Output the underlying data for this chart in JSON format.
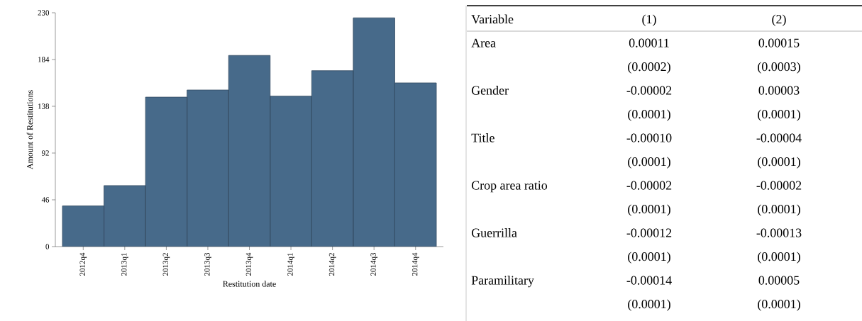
{
  "chart_data": [
    {
      "type": "bar",
      "xlabel": "Restitution date",
      "ylabel": "Amount of Restitutions",
      "categories": [
        "2012q4",
        "2013q1",
        "2013q2",
        "2013q3",
        "2013q4",
        "2014q1",
        "2014q2",
        "2014q3",
        "2014q4"
      ],
      "values": [
        40,
        60,
        147,
        154,
        188,
        148,
        173,
        225,
        161
      ],
      "color": "#476a8a",
      "ylim": [
        0,
        230
      ],
      "yticks": [
        0,
        46,
        92,
        138,
        184,
        230
      ]
    },
    {
      "type": "other",
      "ylabel": "Variable",
      "categories": [
        "(1)",
        "(2)"
      ],
      "y_categories": [
        "Area",
        null,
        "Gender",
        null,
        "Title",
        null,
        "Crop area ratio",
        null,
        "Guerrilla",
        null,
        "Paramilitary",
        null
      ],
      "cell_labels": [
        [
          "0.00011",
          "0.00015"
        ],
        [
          "(0.0002)",
          "(0.0003)"
        ],
        [
          "-0.00002",
          "0.00003"
        ],
        [
          "(0.0001)",
          "(0.0001)"
        ],
        [
          "-0.00010",
          "-0.00004"
        ],
        [
          "(0.0001)",
          "(0.0001)"
        ],
        [
          "-0.00002",
          "-0.00002"
        ],
        [
          "(0.0001)",
          "(0.0001)"
        ],
        [
          "-0.00012",
          "-0.00013"
        ],
        [
          "(0.0001)",
          "(0.0001)"
        ],
        [
          "-0.00014",
          "0.00005"
        ],
        [
          "(0.0001)",
          "(0.0001)"
        ]
      ]
    }
  ]
}
